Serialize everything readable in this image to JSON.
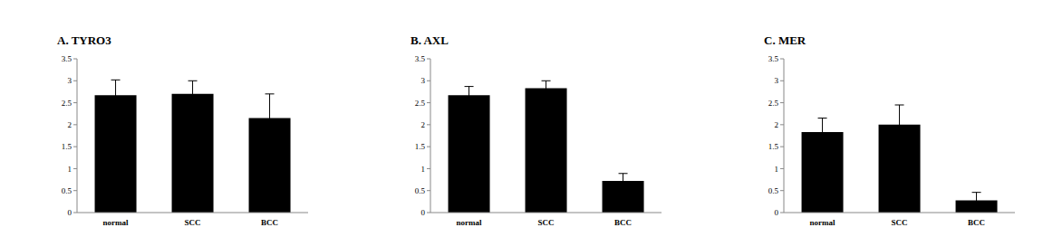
{
  "chart_data": [
    {
      "type": "bar",
      "title": "A. TYRO3",
      "categories": [
        "normal",
        "SCC",
        "BCC"
      ],
      "values": [
        2.67,
        2.7,
        2.15
      ],
      "error": [
        0.35,
        0.3,
        0.55
      ],
      "color": "#000000",
      "ylim": [
        0,
        3.5
      ],
      "yticks": [
        0,
        0.5,
        1,
        1.5,
        2,
        2.5,
        3,
        3.5
      ],
      "grid": false
    },
    {
      "type": "bar",
      "title": "B. AXL",
      "categories": [
        "normal",
        "SCC",
        "BCC"
      ],
      "values": [
        2.67,
        2.83,
        0.72
      ],
      "error": [
        0.2,
        0.17,
        0.17
      ],
      "color": "#000000",
      "ylim": [
        0,
        3.5
      ],
      "yticks": [
        0,
        0.5,
        1,
        1.5,
        2,
        2.5,
        3,
        3.5
      ],
      "grid": false
    },
    {
      "type": "bar",
      "title": "C. MER",
      "categories": [
        "normal",
        "SCC",
        "BCC"
      ],
      "values": [
        1.83,
        2.0,
        0.28
      ],
      "error": [
        0.32,
        0.45,
        0.18
      ],
      "color": "#000000",
      "ylim": [
        0,
        3.5
      ],
      "yticks": [
        0,
        0.5,
        1,
        1.5,
        2,
        2.5,
        3,
        3.5
      ],
      "grid": false
    }
  ]
}
